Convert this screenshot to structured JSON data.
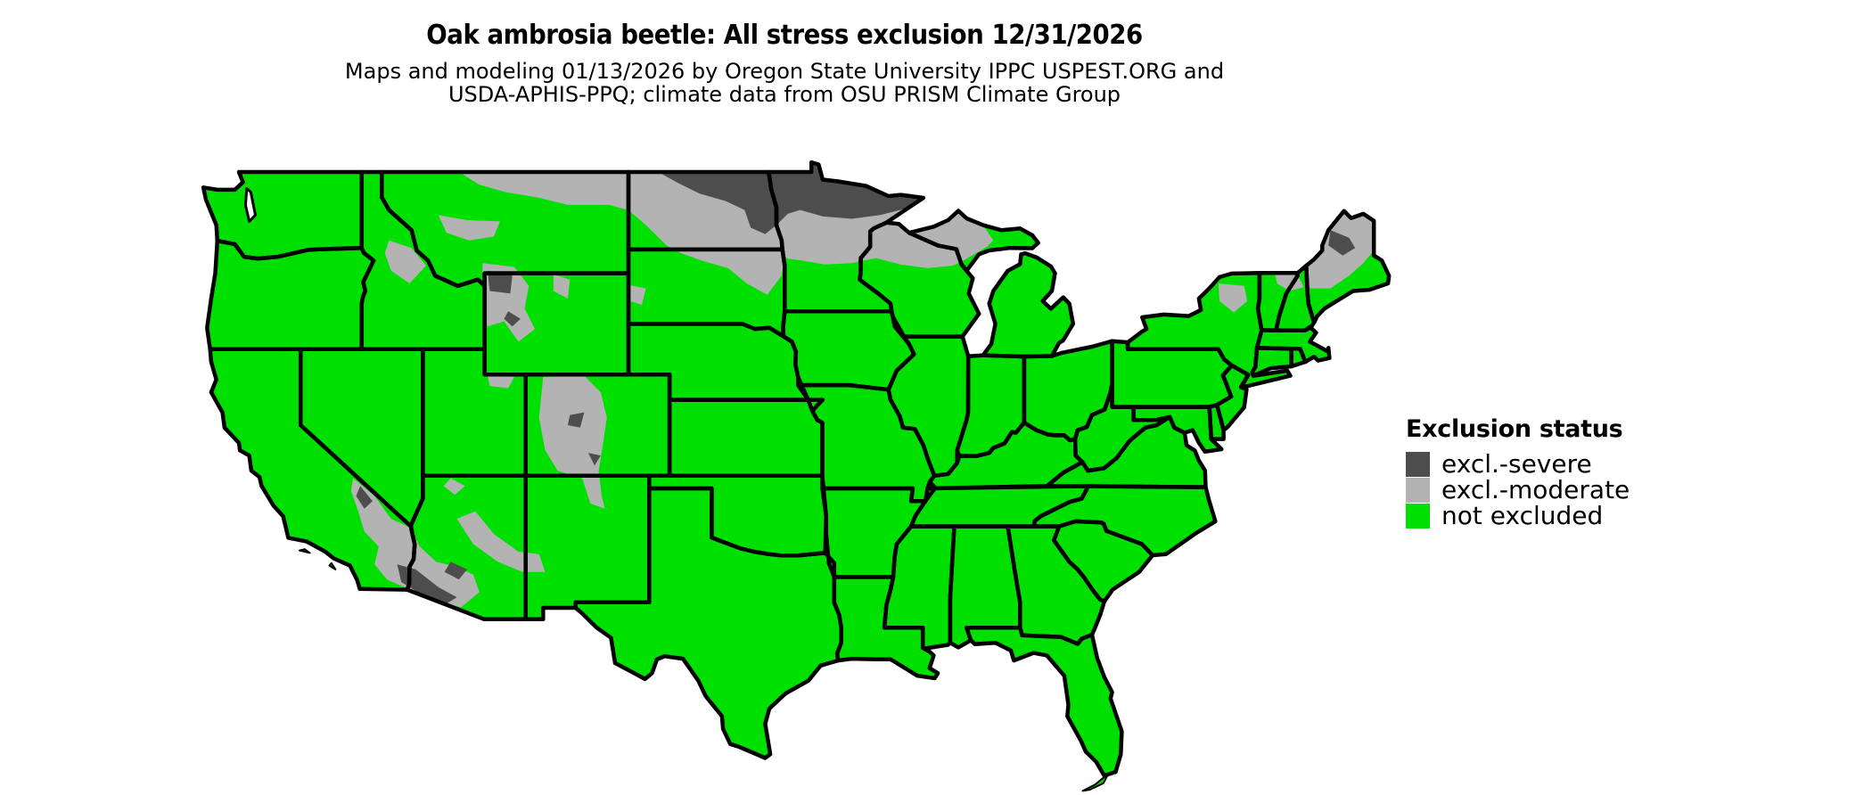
{
  "title": "Oak ambrosia beetle: All stress exclusion 12/31/2026",
  "subtitle": {
    "line1": "Maps and modeling 01/13/2026 by Oregon State University IPPC USPEST.ORG and",
    "line2": "USDA-APHIS-PPQ; climate data from OSU PRISM Climate Group"
  },
  "legend": {
    "title": "Exclusion status",
    "items": [
      {
        "label": "excl.-severe",
        "color": "#4d4d4d"
      },
      {
        "label": "excl.-moderate",
        "color": "#b3b3b3"
      },
      {
        "label": "not excluded",
        "color": "#00e000"
      }
    ]
  },
  "map": {
    "region": "Contiguous United States",
    "land_color": "#00e000",
    "border_color": "#000000",
    "water_color": "#ffffff"
  }
}
